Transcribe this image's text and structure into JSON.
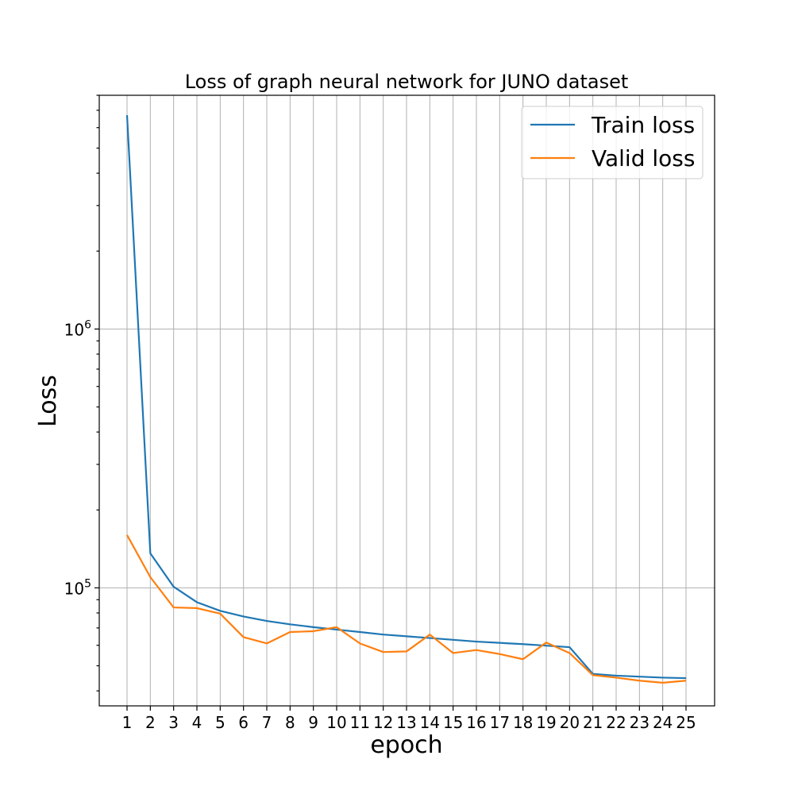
{
  "chart_data": {
    "type": "line",
    "title": "Loss of graph neural network for JUNO dataset",
    "xlabel": "epoch",
    "ylabel": "Loss",
    "yscale": "log",
    "ylim": [
      35000,
      8000000
    ],
    "grid": true,
    "legend_position": "top-right",
    "x": [
      1,
      2,
      3,
      4,
      5,
      6,
      7,
      8,
      9,
      10,
      11,
      12,
      13,
      14,
      15,
      16,
      17,
      18,
      19,
      20,
      21,
      22,
      23,
      24,
      25
    ],
    "y_ticks": [
      {
        "value": 100000,
        "base": "10",
        "exp": "5"
      },
      {
        "value": 1000000,
        "base": "10",
        "exp": "6"
      }
    ],
    "series": [
      {
        "name": "Train loss",
        "color": "#1f77b4",
        "values": [
          6700000,
          136000,
          101000,
          88000,
          81500,
          77500,
          74500,
          72300,
          70500,
          69000,
          67500,
          66000,
          65000,
          64000,
          63000,
          62000,
          61300,
          60600,
          59800,
          59000,
          46500,
          45800,
          45400,
          45000,
          44800
        ]
      },
      {
        "name": "Valid loss",
        "color": "#ff7f0e",
        "values": [
          160000,
          110000,
          84000,
          83500,
          79500,
          64500,
          61000,
          67500,
          68000,
          70500,
          61000,
          56500,
          56800,
          66000,
          56000,
          57500,
          55500,
          53000,
          61500,
          56000,
          46000,
          45000,
          43800,
          43000,
          43800
        ]
      }
    ]
  }
}
